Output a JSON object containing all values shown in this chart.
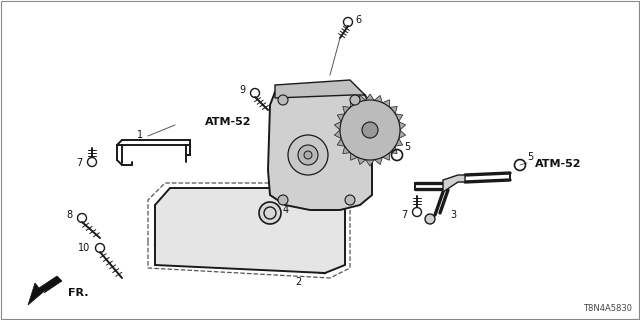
{
  "bg_color": "#ffffff",
  "line_color": "#1a1a1a",
  "part_number_ref": "T8N4A5830",
  "fr_label": "FR.",
  "atm52_label": "ATM-52",
  "border_color": "#888888"
}
